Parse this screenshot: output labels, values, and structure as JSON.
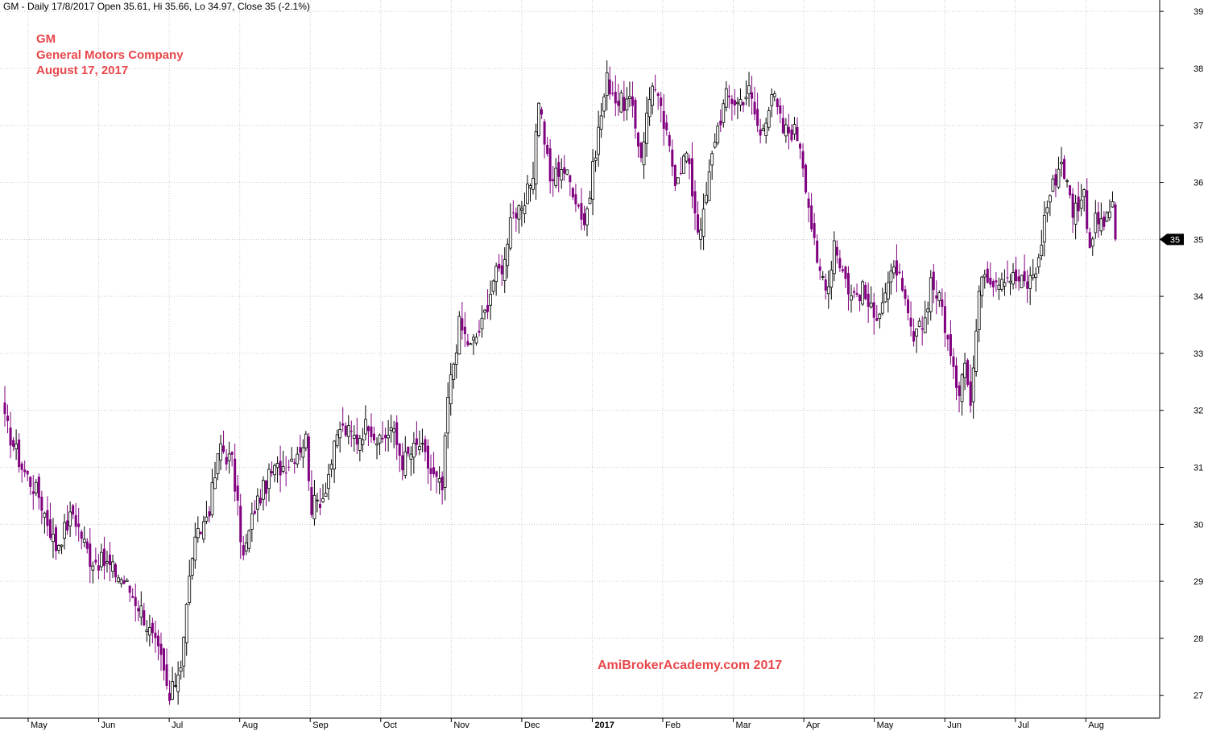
{
  "header": {
    "line": "GM - Daily 17/8/2017 Open 35.61, Hi 35.66, Lo 34.97, Close 35 (-2.1%)"
  },
  "titles": {
    "ticker": "GM",
    "company": "General Motors Company",
    "date": "August 17, 2017"
  },
  "watermark": "AmiBrokerAcademy.com  2017",
  "colors": {
    "up_candle": "#000000",
    "down_candle": "#800080",
    "title_text": "#e8474b",
    "gridline": "#cccccc",
    "price_badge_bg": "#000000",
    "price_badge_text": "#ffffff"
  },
  "chart_data": {
    "type": "candlestick",
    "symbol": "GM",
    "interval": "Daily",
    "ylim": [
      26.6,
      39.2
    ],
    "y_ticks": [
      27,
      28,
      29,
      30,
      31,
      32,
      33,
      34,
      35,
      36,
      37,
      38,
      39
    ],
    "y_tick_labels": [
      "27",
      "28",
      "29",
      "30",
      "31",
      "32",
      "33",
      "34",
      "35",
      "36",
      "37",
      "38",
      "39"
    ],
    "x_labels": [
      "May",
      "Jun",
      "Jul",
      "Aug",
      "Sep",
      "Oct",
      "Nov",
      "Dec",
      "2017",
      "Feb",
      "Mar",
      "Apr",
      "May",
      "Jun",
      "Jul",
      "Aug"
    ],
    "last_price": "35",
    "last_candle": {
      "open": 35.61,
      "high": 35.66,
      "low": 34.97,
      "close": 35
    },
    "grid": true,
    "close_anchors": [
      [
        0,
        31.8
      ],
      [
        6,
        31.0
      ],
      [
        12,
        30.5
      ],
      [
        18,
        29.6
      ],
      [
        24,
        30.2
      ],
      [
        30,
        29.4
      ],
      [
        36,
        29.3
      ],
      [
        42,
        29.0
      ],
      [
        48,
        28.5
      ],
      [
        55,
        27.6
      ],
      [
        58,
        26.9
      ],
      [
        62,
        27.6
      ],
      [
        66,
        29.5
      ],
      [
        72,
        30.3
      ],
      [
        76,
        31.4
      ],
      [
        78,
        31.2
      ],
      [
        80,
        31.1
      ],
      [
        84,
        29.4
      ],
      [
        88,
        30.3
      ],
      [
        94,
        30.9
      ],
      [
        100,
        31.1
      ],
      [
        106,
        31.5
      ],
      [
        108,
        30.3
      ],
      [
        112,
        30.5
      ],
      [
        118,
        31.7
      ],
      [
        124,
        31.5
      ],
      [
        128,
        31.8
      ],
      [
        132,
        31.4
      ],
      [
        136,
        31.7
      ],
      [
        140,
        31.1
      ],
      [
        146,
        31.4
      ],
      [
        150,
        30.9
      ],
      [
        154,
        30.6
      ],
      [
        156,
        32.2
      ],
      [
        160,
        33.5
      ],
      [
        164,
        33.1
      ],
      [
        168,
        33.5
      ],
      [
        172,
        34.3
      ],
      [
        176,
        34.6
      ],
      [
        178,
        35.5
      ],
      [
        182,
        35.4
      ],
      [
        186,
        36.2
      ],
      [
        188,
        37.5
      ],
      [
        192,
        36.0
      ],
      [
        196,
        36.3
      ],
      [
        200,
        35.9
      ],
      [
        204,
        35.3
      ],
      [
        206,
        35.8
      ],
      [
        208,
        36.6
      ],
      [
        212,
        37.8
      ],
      [
        216,
        37.4
      ],
      [
        220,
        37.4
      ],
      [
        224,
        36.5
      ],
      [
        228,
        37.8
      ],
      [
        232,
        37.0
      ],
      [
        236,
        36.1
      ],
      [
        240,
        36.5
      ],
      [
        244,
        35.2
      ],
      [
        246,
        35.4
      ],
      [
        250,
        36.8
      ],
      [
        254,
        37.5
      ],
      [
        258,
        37.4
      ],
      [
        262,
        37.6
      ],
      [
        266,
        36.8
      ],
      [
        270,
        37.6
      ],
      [
        274,
        36.9
      ],
      [
        278,
        36.9
      ],
      [
        280,
        36.7
      ],
      [
        282,
        36.0
      ],
      [
        286,
        34.5
      ],
      [
        290,
        34.2
      ],
      [
        292,
        35.0
      ],
      [
        294,
        34.6
      ],
      [
        298,
        34.0
      ],
      [
        302,
        34.1
      ],
      [
        306,
        33.6
      ],
      [
        310,
        34.1
      ],
      [
        314,
        34.5
      ],
      [
        316,
        34.0
      ],
      [
        320,
        33.2
      ],
      [
        324,
        33.6
      ],
      [
        326,
        34.3
      ],
      [
        330,
        33.8
      ],
      [
        334,
        32.6
      ],
      [
        336,
        32.4
      ],
      [
        338,
        33.0
      ],
      [
        340,
        32.1
      ],
      [
        342,
        33.4
      ],
      [
        344,
        34.5
      ],
      [
        348,
        34.3
      ],
      [
        352,
        34.4
      ],
      [
        356,
        34.3
      ],
      [
        360,
        34.2
      ],
      [
        364,
        34.6
      ],
      [
        366,
        35.4
      ],
      [
        368,
        35.8
      ],
      [
        372,
        36.4
      ],
      [
        376,
        35.5
      ],
      [
        380,
        35.8
      ],
      [
        382,
        34.9
      ],
      [
        384,
        35.3
      ],
      [
        388,
        35.3
      ],
      [
        390,
        35.7
      ],
      [
        391,
        35.0
      ]
    ]
  }
}
